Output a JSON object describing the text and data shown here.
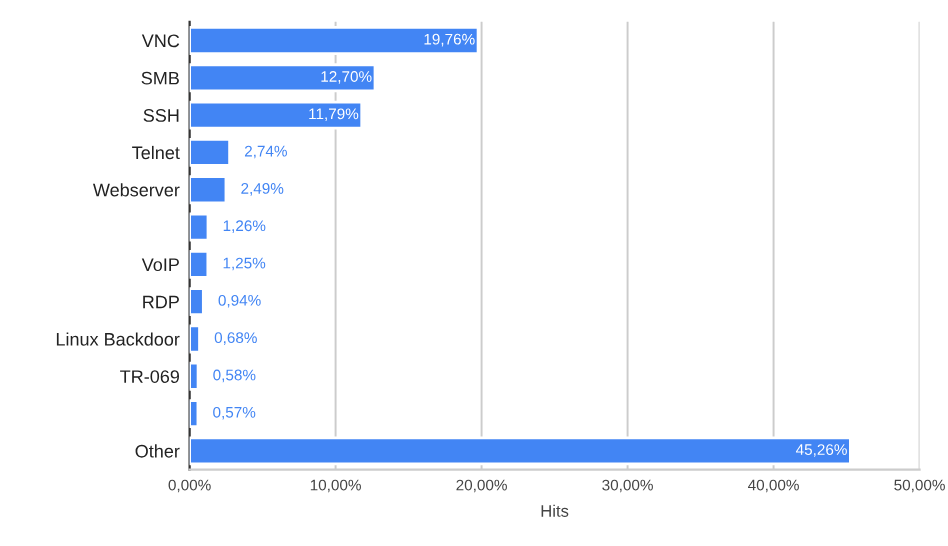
{
  "chart_data": {
    "type": "bar",
    "orientation": "horizontal",
    "xlabel": "Hits",
    "categories": [
      "VNC",
      "SMB",
      "SSH",
      "Telnet",
      "Webserver",
      null,
      "VoIP",
      "RDP",
      "Linux Backdoor",
      "TR-069",
      null,
      "Other"
    ],
    "values": [
      19.76,
      12.7,
      11.79,
      2.74,
      2.49,
      1.26,
      1.25,
      0.94,
      0.68,
      0.58,
      0.57,
      45.26
    ],
    "value_labels": [
      "19,76%",
      "12,70%",
      "11,79%",
      "2,74%",
      "2,49%",
      "1,26%",
      "1,25%",
      "0,94%",
      "0,68%",
      "0,58%",
      "0,57%",
      "45,26%"
    ],
    "color": "#4285f4",
    "xlim": [
      0,
      50
    ],
    "xticks": [
      {
        "value": 0,
        "label": "0,00%"
      },
      {
        "value": 10,
        "label": "10,00%"
      },
      {
        "value": 20,
        "label": "20,00%"
      },
      {
        "value": 30,
        "label": "30,00%"
      },
      {
        "value": 40,
        "label": "40,00%"
      },
      {
        "value": 50,
        "label": "50,00%"
      }
    ],
    "grid": "x"
  }
}
